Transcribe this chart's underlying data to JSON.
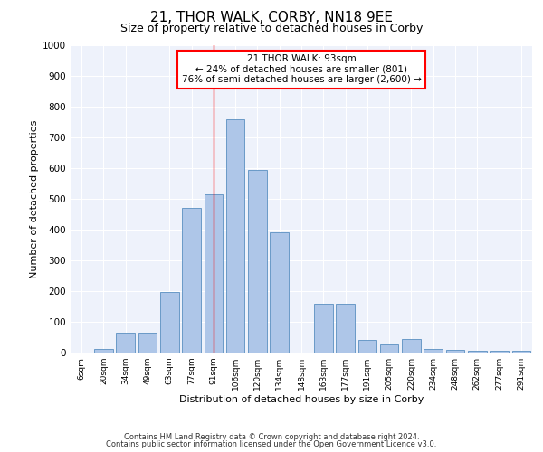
{
  "title1": "21, THOR WALK, CORBY, NN18 9EE",
  "title2": "Size of property relative to detached houses in Corby",
  "xlabel": "Distribution of detached houses by size in Corby",
  "ylabel": "Number of detached properties",
  "categories": [
    "6sqm",
    "20sqm",
    "34sqm",
    "49sqm",
    "63sqm",
    "77sqm",
    "91sqm",
    "106sqm",
    "120sqm",
    "134sqm",
    "148sqm",
    "163sqm",
    "177sqm",
    "191sqm",
    "205sqm",
    "220sqm",
    "234sqm",
    "248sqm",
    "262sqm",
    "277sqm",
    "291sqm"
  ],
  "values": [
    0,
    13,
    65,
    65,
    198,
    472,
    515,
    758,
    595,
    390,
    0,
    160,
    160,
    42,
    26,
    45,
    13,
    10,
    5,
    5,
    5
  ],
  "bar_color": "#aec6e8",
  "bar_edge_color": "#5a8fc0",
  "vline_x_idx": 6,
  "vline_color": "red",
  "annotation_line1": "21 THOR WALK: 93sqm",
  "annotation_line2": "← 24% of detached houses are smaller (801)",
  "annotation_line3": "76% of semi-detached houses are larger (2,600) →",
  "annotation_box_color": "white",
  "annotation_box_edge": "red",
  "ylim": [
    0,
    1000
  ],
  "yticks": [
    0,
    100,
    200,
    300,
    400,
    500,
    600,
    700,
    800,
    900,
    1000
  ],
  "background_color": "#eef2fb",
  "footer_line1": "Contains HM Land Registry data © Crown copyright and database right 2024.",
  "footer_line2": "Contains public sector information licensed under the Open Government Licence v3.0.",
  "title1_fontsize": 11,
  "title2_fontsize": 9,
  "bar_fontsize": 7,
  "ylabel_fontsize": 8,
  "xlabel_fontsize": 8
}
